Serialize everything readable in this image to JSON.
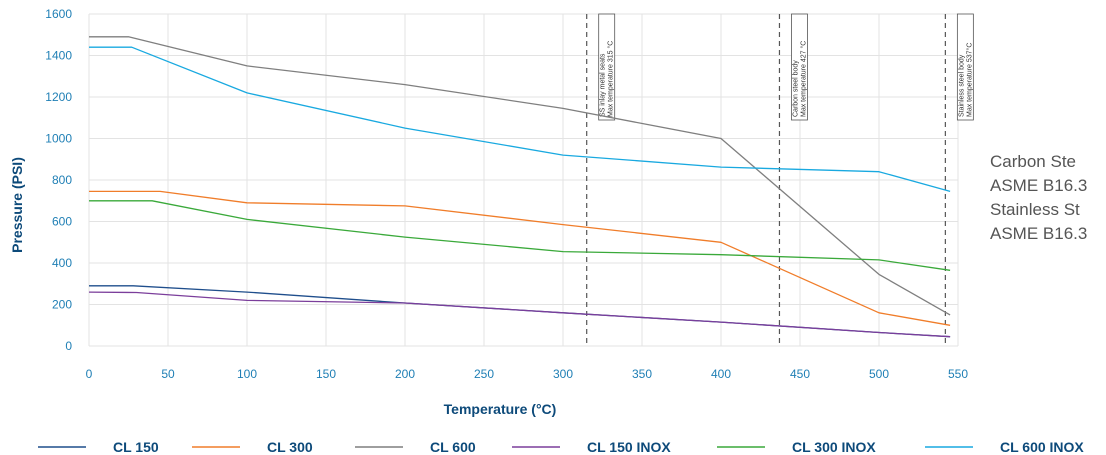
{
  "chart_data": {
    "type": "line",
    "xlabel": "Temperature (°C)",
    "ylabel": "Pressure (PSI)",
    "xlim": [
      0,
      550
    ],
    "ylim": [
      0,
      1600
    ],
    "x_ticks": [
      0,
      50,
      100,
      150,
      200,
      250,
      300,
      350,
      400,
      450,
      500,
      550
    ],
    "y_ticks": [
      0,
      200,
      400,
      600,
      800,
      1000,
      1200,
      1400,
      1600
    ],
    "grid": true,
    "legend_position": "bottom",
    "series": [
      {
        "name": "CL 150",
        "color": "#1f4e8c",
        "points": [
          [
            0,
            290
          ],
          [
            28,
            290
          ],
          [
            100,
            260
          ],
          [
            200,
            207
          ],
          [
            300,
            160
          ],
          [
            400,
            115
          ],
          [
            500,
            65
          ],
          [
            545,
            45
          ]
        ]
      },
      {
        "name": "CL 300",
        "color": "#f07d2a",
        "points": [
          [
            0,
            745
          ],
          [
            45,
            745
          ],
          [
            100,
            690
          ],
          [
            200,
            675
          ],
          [
            300,
            585
          ],
          [
            400,
            500
          ],
          [
            500,
            160
          ],
          [
            545,
            100
          ]
        ]
      },
      {
        "name": "CL 600",
        "color": "#7f7f7f",
        "points": [
          [
            0,
            1490
          ],
          [
            25,
            1490
          ],
          [
            100,
            1350
          ],
          [
            200,
            1260
          ],
          [
            300,
            1145
          ],
          [
            400,
            1000
          ],
          [
            500,
            345
          ],
          [
            545,
            150
          ]
        ]
      },
      {
        "name": "CL 150 INOX",
        "color": "#7b3e9b",
        "points": [
          [
            0,
            260
          ],
          [
            30,
            258
          ],
          [
            100,
            220
          ],
          [
            200,
            207
          ],
          [
            300,
            160
          ],
          [
            400,
            115
          ],
          [
            500,
            65
          ],
          [
            545,
            45
          ]
        ]
      },
      {
        "name": "CL 300 INOX",
        "color": "#3aa93a",
        "points": [
          [
            0,
            700
          ],
          [
            40,
            700
          ],
          [
            100,
            610
          ],
          [
            200,
            525
          ],
          [
            300,
            455
          ],
          [
            400,
            440
          ],
          [
            500,
            415
          ],
          [
            545,
            365
          ]
        ]
      },
      {
        "name": "CL 600 INOX",
        "color": "#19a9e0",
        "points": [
          [
            0,
            1440
          ],
          [
            27,
            1440
          ],
          [
            100,
            1220
          ],
          [
            200,
            1050
          ],
          [
            300,
            920
          ],
          [
            400,
            862
          ],
          [
            500,
            840
          ],
          [
            545,
            745
          ]
        ]
      }
    ],
    "annotations": [
      {
        "x": 315,
        "lines": [
          "SS inlay metal seats",
          "Max temperature 315 °C"
        ]
      },
      {
        "x": 437,
        "lines": [
          "Carbon steel body",
          "Max temperature 427 °C"
        ]
      },
      {
        "x": 542,
        "lines": [
          "Stainless steel body",
          "Max temperature 537°C"
        ]
      }
    ]
  },
  "side_note": {
    "lines": [
      "Carbon Ste",
      "ASME B16.3",
      "Stainless St",
      "ASME B16.3"
    ]
  }
}
